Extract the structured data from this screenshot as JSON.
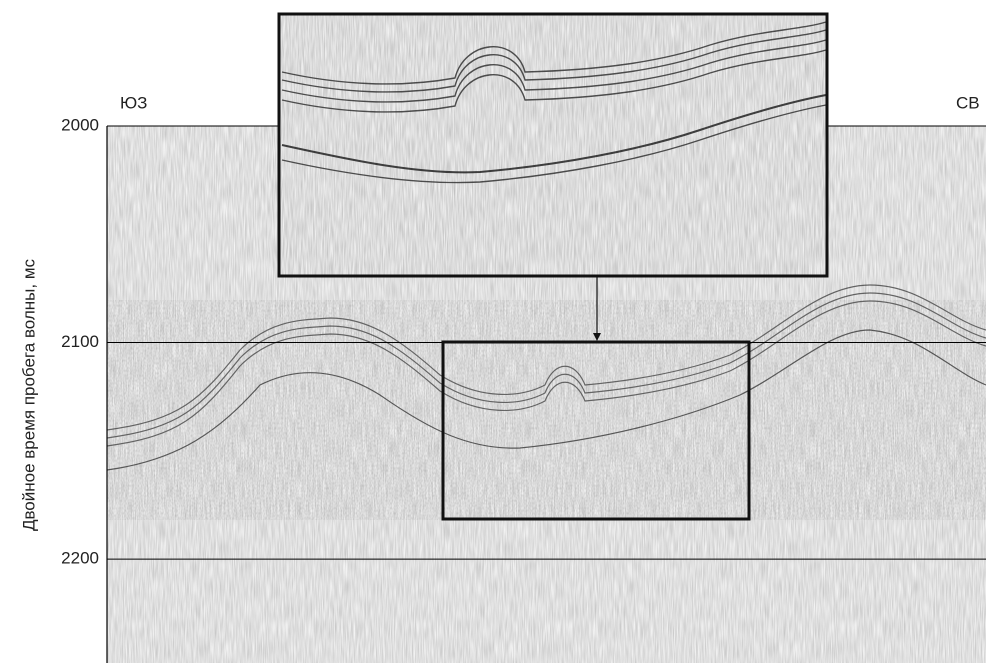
{
  "chart_data": {
    "type": "seismic-section",
    "y_label": "Двойное время пробега волны, мс",
    "left_label": "ЮЗ",
    "right_label": "СВ",
    "ylim": [
      2000,
      2248
    ],
    "yticks": [
      2000,
      2100,
      2200
    ],
    "grid": true
  }
}
